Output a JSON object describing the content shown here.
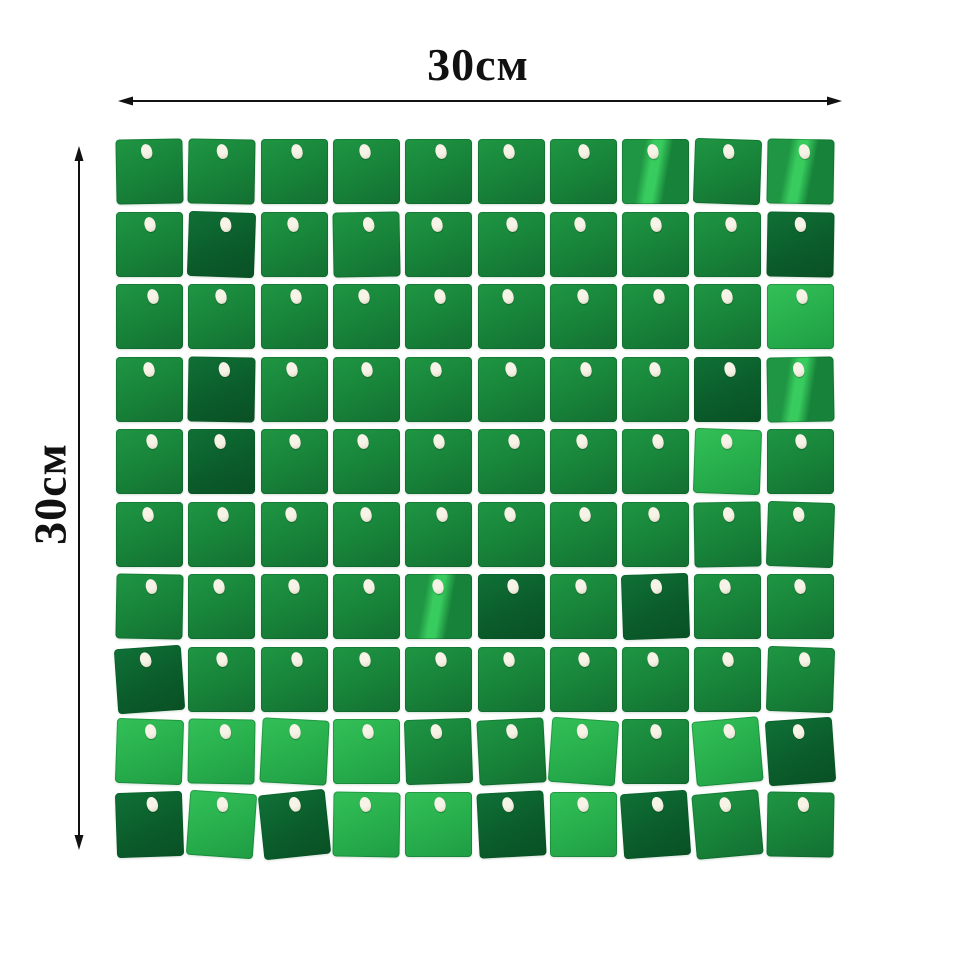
{
  "figure": {
    "top_dimension_label": "30см",
    "left_dimension_label": "30см"
  },
  "panel": {
    "rows": 10,
    "cols": 10,
    "shades": [
      [
        "m",
        "m",
        "m",
        "m",
        "m",
        "m",
        "m",
        "g",
        "m",
        "g"
      ],
      [
        "m",
        "d",
        "m",
        "m",
        "m",
        "m",
        "m",
        "m",
        "m",
        "d"
      ],
      [
        "m",
        "m",
        "m",
        "m",
        "m",
        "m",
        "m",
        "m",
        "m",
        "b"
      ],
      [
        "m",
        "d",
        "m",
        "m",
        "m",
        "m",
        "m",
        "m",
        "d",
        "g"
      ],
      [
        "m",
        "d",
        "m",
        "m",
        "m",
        "m",
        "m",
        "m",
        "b",
        "m"
      ],
      [
        "m",
        "m",
        "m",
        "m",
        "m",
        "m",
        "m",
        "m",
        "m",
        "m"
      ],
      [
        "m",
        "m",
        "m",
        "m",
        "g",
        "d",
        "m",
        "d",
        "m",
        "m"
      ],
      [
        "d",
        "m",
        "m",
        "m",
        "m",
        "m",
        "m",
        "m",
        "m",
        "m"
      ],
      [
        "b",
        "b",
        "b",
        "b",
        "m",
        "m",
        "b",
        "m",
        "b",
        "d"
      ],
      [
        "d",
        "b",
        "d",
        "b",
        "b",
        "d",
        "b",
        "d",
        "m",
        "m"
      ]
    ],
    "tilts": [
      [
        -1,
        1,
        0,
        0,
        0,
        0,
        0,
        0,
        2,
        1
      ],
      [
        0,
        2,
        0,
        -1,
        0,
        0,
        0,
        0,
        0,
        1
      ],
      [
        0,
        0,
        0,
        0,
        0,
        0,
        0,
        0,
        0,
        0
      ],
      [
        0,
        1,
        0,
        0,
        0,
        0,
        0,
        0,
        0,
        -1
      ],
      [
        0,
        0,
        0,
        0,
        0,
        0,
        0,
        0,
        2,
        0
      ],
      [
        0,
        0,
        0,
        0,
        0,
        0,
        0,
        0,
        -1,
        2
      ],
      [
        1,
        0,
        0,
        0,
        0,
        0,
        0,
        -2,
        0,
        0
      ],
      [
        -4,
        0,
        0,
        0,
        0,
        0,
        0,
        0,
        0,
        2
      ],
      [
        2,
        1,
        3,
        0,
        -2,
        -3,
        4,
        0,
        -5,
        -4
      ],
      [
        -2,
        4,
        -6,
        1,
        0,
        -3,
        0,
        -4,
        -5,
        1
      ]
    ],
    "palette": {
      "d": [
        "#0f7136",
        "#0b5d2b",
        "#095025"
      ],
      "m": [
        "#1f9643",
        "#178239",
        "#136f31"
      ],
      "b": [
        "#33c058",
        "#27ae4c",
        "#1f9c44"
      ],
      "g": [
        "#1f9643",
        "#38cb5e",
        "#178239"
      ]
    },
    "pin_color": "#ece7d8"
  },
  "colors": {
    "background": "#ffffff",
    "dimension_lines": "#111111",
    "label_text": "#111111"
  }
}
